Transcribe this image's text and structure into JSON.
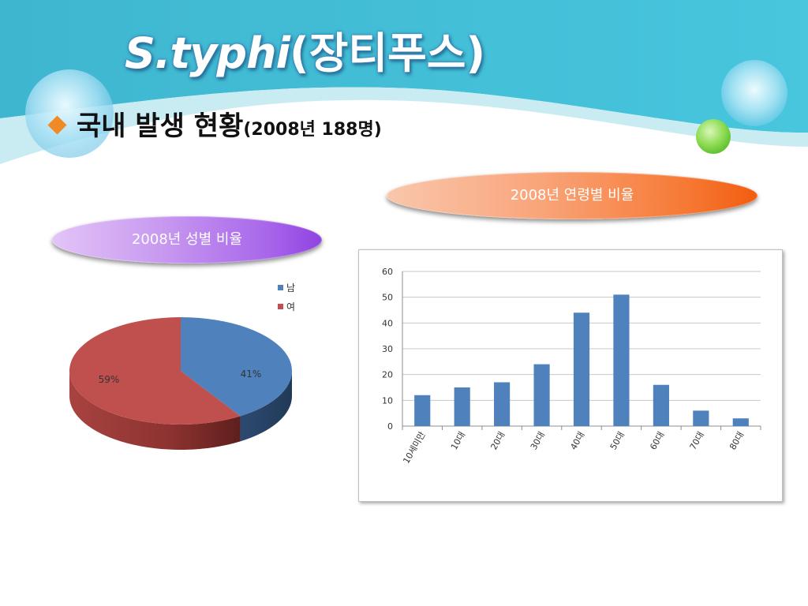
{
  "slide": {
    "title_en": "S.typhi",
    "title_ko": "(장티푸스)",
    "bullet_main": "국내 발생 현황",
    "bullet_sub": "(2008년 188명)"
  },
  "labels": {
    "age_title": "2008년 연령별 비율",
    "gender_title": "2008년 성별 비율"
  },
  "colors": {
    "bar": "#4f81bd",
    "male": "#4f81bd",
    "female": "#c0504d",
    "bullet": "#f08a24"
  },
  "chart_data": [
    {
      "type": "pie",
      "title": "2008년 성별 비율",
      "legend_position": "top-right",
      "categories": [
        "남",
        "여"
      ],
      "values": [
        41,
        59
      ],
      "data_labels": [
        "41%",
        "59%"
      ]
    },
    {
      "type": "bar",
      "title": "2008년 연령별 비율",
      "categories": [
        "10세미만",
        "10대",
        "20대",
        "30대",
        "40대",
        "50대",
        "60대",
        "70대",
        "80대"
      ],
      "values": [
        12,
        15,
        17,
        24,
        44,
        51,
        16,
        6,
        3
      ],
      "ylim": [
        0,
        60
      ],
      "yticks": [
        0,
        10,
        20,
        30,
        40,
        50,
        60
      ],
      "grid": true
    }
  ]
}
